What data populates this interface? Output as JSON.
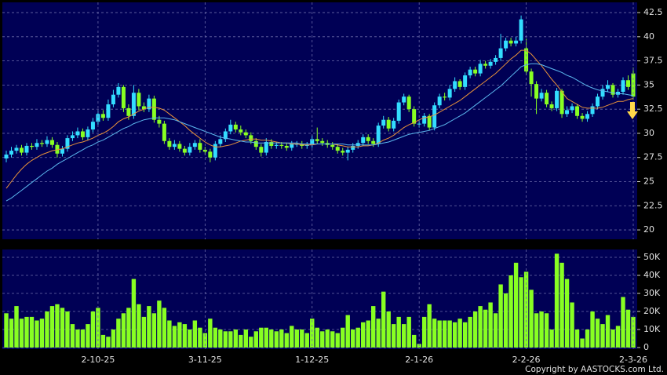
{
  "chart_data": [
    {
      "type": "candlestick",
      "up_color": "#33ddff",
      "down_color": "#88ff22",
      "open": [
        27.4,
        27.8,
        28.2,
        28.5,
        28.0,
        28.7,
        28.6,
        29.0,
        28.9,
        29.3,
        28.8,
        27.9,
        28.4,
        29.5,
        29.8,
        30.2,
        29.6,
        30.4,
        31.2,
        32.0,
        31.6,
        33.0,
        34.0,
        34.8,
        32.6,
        31.8,
        34.2,
        32.8,
        32.5,
        33.6,
        31.4,
        31.0,
        29.2,
        28.6,
        28.9,
        28.4,
        28.0,
        28.6,
        29.0,
        28.3,
        28.1,
        27.5,
        28.9,
        29.4,
        30.2,
        30.9,
        30.4,
        30.1,
        29.8,
        29.2,
        28.6,
        28.0,
        29.1,
        28.7,
        28.8,
        28.7,
        28.5,
        28.9,
        28.9,
        28.7,
        28.8,
        29.4,
        29.2,
        29.0,
        28.8,
        28.6,
        28.2,
        28.0,
        28.3,
        28.7,
        29.0,
        29.6,
        29.2,
        28.9,
        30.8,
        31.4,
        30.5,
        31.3,
        33.2,
        33.8,
        32.5,
        31.0,
        31.0,
        31.8,
        30.6,
        32.9,
        33.8,
        33.7,
        34.6,
        35.4,
        34.8,
        36.0,
        36.6,
        36.2,
        37.2,
        37.0,
        37.4,
        37.8,
        38.8,
        39.6,
        39.3,
        39.6,
        38.8,
        36.4,
        35.1,
        33.6,
        34.2,
        33.0,
        32.6,
        34.4,
        32.0,
        32.4,
        32.8,
        31.8,
        31.5,
        32.0,
        32.8,
        33.8,
        34.6,
        35.0,
        34.0,
        34.3,
        35.5,
        36.2
      ],
      "high": [
        28.2,
        28.6,
        28.8,
        28.8,
        29.0,
        29.0,
        29.4,
        29.3,
        29.7,
        29.6,
        29.1,
        28.7,
        29.8,
        30.2,
        30.6,
        30.5,
        30.7,
        31.6,
        32.4,
        32.4,
        33.5,
        34.5,
        35.2,
        35.0,
        33.0,
        35.0,
        34.6,
        33.2,
        34.0,
        33.9,
        31.8,
        31.3,
        29.5,
        29.3,
        29.2,
        28.7,
        29.0,
        29.3,
        29.4,
        28.6,
        28.4,
        29.2,
        29.8,
        30.5,
        31.4,
        31.2,
        30.8,
        30.4,
        30.1,
        29.5,
        28.9,
        29.5,
        29.4,
        29.1,
        29.1,
        29.0,
        29.2,
        29.2,
        29.2,
        29.1,
        29.8,
        30.6,
        29.5,
        29.3,
        29.1,
        28.9,
        28.5,
        28.6,
        29.0,
        29.3,
        29.9,
        29.9,
        29.5,
        31.1,
        31.8,
        31.7,
        31.6,
        33.5,
        34.1,
        34.0,
        32.8,
        31.4,
        32.1,
        32.0,
        33.2,
        34.1,
        34.2,
        35.0,
        35.8,
        35.6,
        36.3,
        36.9,
        36.9,
        37.6,
        37.5,
        37.7,
        38.1,
        40.3,
        39.9,
        39.9,
        40.0,
        42.2,
        39.8,
        36.7,
        35.4,
        34.6,
        34.5,
        33.3,
        34.7,
        34.6,
        32.8,
        33.1,
        33.0,
        32.1,
        32.3,
        33.1,
        34.1,
        35.0,
        35.5,
        35.2,
        34.6,
        35.8,
        36.0,
        36.8
      ],
      "low": [
        27.0,
        27.5,
        27.9,
        27.7,
        27.7,
        28.3,
        28.3,
        28.6,
        28.6,
        28.5,
        27.5,
        27.6,
        28.1,
        29.2,
        29.5,
        29.3,
        29.3,
        30.1,
        30.9,
        31.3,
        31.3,
        32.7,
        33.7,
        32.2,
        31.4,
        31.5,
        32.4,
        32.2,
        32.2,
        31.1,
        30.6,
        28.9,
        28.3,
        28.3,
        28.1,
        27.7,
        27.7,
        28.3,
        28.0,
        27.8,
        27.0,
        27.2,
        28.6,
        29.1,
        29.9,
        30.1,
        29.8,
        29.5,
        28.9,
        28.3,
        27.6,
        27.7,
        28.4,
        28.4,
        28.4,
        28.2,
        28.2,
        28.6,
        28.4,
        28.4,
        28.5,
        28.9,
        28.7,
        28.5,
        28.3,
        27.9,
        27.7,
        27.2,
        28.0,
        28.4,
        28.7,
        28.9,
        28.6,
        28.6,
        30.5,
        30.2,
        30.2,
        31.0,
        32.9,
        32.2,
        30.7,
        30.6,
        30.7,
        30.3,
        30.3,
        32.6,
        33.4,
        33.4,
        34.3,
        34.5,
        34.5,
        35.7,
        35.9,
        35.9,
        36.7,
        36.7,
        37.1,
        37.5,
        38.5,
        39.0,
        39.0,
        39.3,
        36.0,
        33.8,
        32.0,
        33.3,
        32.7,
        32.3,
        32.3,
        31.6,
        31.7,
        32.1,
        31.5,
        31.2,
        31.2,
        31.7,
        32.5,
        33.5,
        34.3,
        33.7,
        33.7,
        34.0,
        34.5,
        33.5
      ],
      "close": [
        27.8,
        28.2,
        28.5,
        28.0,
        28.7,
        28.6,
        29.0,
        28.9,
        29.3,
        28.8,
        27.9,
        28.4,
        29.5,
        29.8,
        30.2,
        29.6,
        30.4,
        31.2,
        32.0,
        31.6,
        33.0,
        34.0,
        34.8,
        32.6,
        31.8,
        34.2,
        32.8,
        32.5,
        33.6,
        31.4,
        31.0,
        29.2,
        28.6,
        28.9,
        28.4,
        28.0,
        28.6,
        29.0,
        28.3,
        28.1,
        27.5,
        28.9,
        29.4,
        30.2,
        30.9,
        30.4,
        30.1,
        29.8,
        29.2,
        28.6,
        28.0,
        29.1,
        28.7,
        28.8,
        28.7,
        28.5,
        28.9,
        28.9,
        28.7,
        28.8,
        29.4,
        29.2,
        29.0,
        28.8,
        28.6,
        28.2,
        28.0,
        28.3,
        28.7,
        29.0,
        29.6,
        29.2,
        28.9,
        30.8,
        31.4,
        30.5,
        31.3,
        33.2,
        33.8,
        32.5,
        31.0,
        31.0,
        31.8,
        30.6,
        32.9,
        33.8,
        33.7,
        34.6,
        35.4,
        34.8,
        36.0,
        36.6,
        36.2,
        37.2,
        37.0,
        37.4,
        37.8,
        38.8,
        39.6,
        39.3,
        39.6,
        41.8,
        36.4,
        35.1,
        33.6,
        34.2,
        33.0,
        32.6,
        34.4,
        32.0,
        32.4,
        32.8,
        31.8,
        31.5,
        32.0,
        32.8,
        33.8,
        34.6,
        35.0,
        34.0,
        34.3,
        35.5,
        34.8,
        33.8
      ],
      "ma_lines": [
        {
          "color": "#e8923a",
          "values": [
            24.3,
            25.0,
            25.7,
            26.3,
            26.8,
            27.2,
            27.5,
            27.8,
            28.0,
            28.2,
            28.3,
            28.4,
            28.6,
            28.8,
            29.0,
            29.1,
            29.3,
            29.5,
            29.8,
            30.0,
            30.3,
            30.7,
            31.2,
            31.5,
            31.7,
            32.0,
            32.3,
            32.5,
            32.7,
            32.7,
            32.6,
            32.4,
            32.0,
            31.6,
            31.2,
            30.8,
            30.3,
            29.9,
            29.5,
            29.1,
            28.8,
            28.6,
            28.6,
            28.7,
            28.8,
            29.0,
            29.2,
            29.3,
            29.4,
            29.4,
            29.3,
            29.3,
            29.2,
            29.1,
            29.0,
            29.0,
            28.9,
            28.9,
            28.8,
            28.8,
            28.8,
            28.9,
            28.9,
            28.9,
            28.9,
            28.8,
            28.7,
            28.6,
            28.6,
            28.6,
            28.7,
            28.7,
            28.8,
            29.0,
            29.3,
            29.5,
            29.8,
            30.2,
            30.6,
            30.9,
            31.1,
            31.4,
            31.6,
            31.7,
            31.9,
            32.2,
            32.5,
            32.8,
            33.1,
            33.4,
            33.8,
            34.2,
            34.6,
            35.0,
            35.4,
            35.8,
            36.2,
            36.7,
            37.2,
            37.7,
            38.1,
            38.6,
            38.6,
            38.2,
            37.6,
            37.0,
            36.3,
            35.6,
            35.0,
            34.3,
            33.6,
            33.3,
            33.0,
            32.7,
            32.6,
            32.6,
            32.6,
            32.7,
            32.9,
            33.1,
            33.3,
            33.3,
            33.5,
            33.6
          ]
        },
        {
          "color": "#5cb8ee",
          "values": [
            23.0,
            23.3,
            23.7,
            24.1,
            24.5,
            24.9,
            25.3,
            25.7,
            26.1,
            26.4,
            26.8,
            27.1,
            27.4,
            27.7,
            28.0,
            28.3,
            28.6,
            28.8,
            29.1,
            29.3,
            29.6,
            29.9,
            30.2,
            30.5,
            30.7,
            31.0,
            31.2,
            31.4,
            31.5,
            31.6,
            31.6,
            31.6,
            31.5,
            31.4,
            31.2,
            31.0,
            30.8,
            30.6,
            30.4,
            30.2,
            30.0,
            29.8,
            29.6,
            29.5,
            29.4,
            29.3,
            29.2,
            29.1,
            29.1,
            29.0,
            29.0,
            29.0,
            29.0,
            29.0,
            29.0,
            29.0,
            29.0,
            29.0,
            28.9,
            28.9,
            28.9,
            28.9,
            28.9,
            28.9,
            28.9,
            28.9,
            28.9,
            28.8,
            28.8,
            28.8,
            28.8,
            28.8,
            28.8,
            28.9,
            29.0,
            29.1,
            29.3,
            29.5,
            29.7,
            29.9,
            30.0,
            30.1,
            30.2,
            30.3,
            30.5,
            30.7,
            30.9,
            31.2,
            31.5,
            31.8,
            32.1,
            32.5,
            32.9,
            33.3,
            33.7,
            34.1,
            34.5,
            34.9,
            35.4,
            35.9,
            36.4,
            36.9,
            37.1,
            37.2,
            37.2,
            37.1,
            36.9,
            36.7,
            36.5,
            36.3,
            36.0,
            35.8,
            35.5,
            35.2,
            34.9,
            34.7,
            34.5,
            34.4,
            34.3,
            34.2,
            34.1,
            34.1,
            34.0,
            33.9
          ]
        }
      ],
      "ylim": [
        19.03,
        43.56
      ],
      "yticks": [
        20,
        22.5,
        25,
        27.5,
        30,
        32.5,
        35,
        37.5,
        40,
        42.5
      ],
      "grid": true
    },
    {
      "type": "bar",
      "color": "#88ff22",
      "categories": [
        null,
        null,
        null,
        null,
        null,
        null,
        null,
        null,
        null,
        null,
        null,
        null,
        null,
        null,
        null,
        null,
        null,
        null,
        "2-10-25",
        null,
        null,
        null,
        null,
        null,
        null,
        null,
        null,
        null,
        null,
        null,
        null,
        null,
        null,
        null,
        null,
        null,
        null,
        null,
        null,
        "3-11-25",
        null,
        null,
        null,
        null,
        null,
        null,
        null,
        null,
        null,
        null,
        null,
        null,
        null,
        null,
        null,
        null,
        null,
        null,
        null,
        null,
        "1-12-25",
        null,
        null,
        null,
        null,
        null,
        null,
        null,
        null,
        null,
        null,
        null,
        null,
        null,
        null,
        null,
        null,
        null,
        null,
        null,
        null,
        "2-1-26",
        null,
        null,
        null,
        null,
        null,
        null,
        null,
        null,
        null,
        null,
        null,
        null,
        null,
        null,
        null,
        null,
        null,
        null,
        null,
        null,
        "2-2-26",
        null,
        null,
        null,
        null,
        null,
        null,
        null,
        null,
        null,
        null,
        null,
        null,
        null,
        null,
        null,
        null,
        null,
        null,
        null,
        null,
        "2-3-26"
      ],
      "values": [
        19000,
        16000,
        23000,
        16000,
        17000,
        17000,
        15000,
        16000,
        20000,
        23000,
        24000,
        22000,
        20000,
        13000,
        10000,
        10000,
        13000,
        20000,
        22000,
        7000,
        6000,
        10000,
        16000,
        19000,
        22000,
        38000,
        24000,
        17000,
        23000,
        19000,
        26000,
        22000,
        15000,
        12000,
        14000,
        13000,
        10000,
        15000,
        11000,
        8000,
        16000,
        11000,
        10000,
        9000,
        9000,
        10000,
        7000,
        10000,
        6000,
        9000,
        11000,
        11000,
        10000,
        9000,
        10000,
        8000,
        12000,
        10000,
        10000,
        8000,
        16000,
        11000,
        9000,
        10000,
        9000,
        8000,
        11000,
        18000,
        10000,
        11000,
        14000,
        15000,
        23000,
        16000,
        31000,
        20000,
        13000,
        17000,
        13000,
        17000,
        7000,
        2000,
        17000,
        24000,
        16000,
        15000,
        15000,
        15000,
        14000,
        16000,
        14000,
        17000,
        20000,
        23000,
        21000,
        25000,
        19000,
        35000,
        30000,
        40000,
        47000,
        39000,
        42000,
        32000,
        19000,
        20000,
        19000,
        10000,
        52000,
        47000,
        38000,
        25000,
        10000,
        5000,
        10000,
        20000,
        16000,
        13000,
        18000,
        10000,
        12000,
        28000,
        21000,
        17000
      ],
      "ylim": [
        -870,
        54347
      ],
      "yticks": [
        0,
        {
          "value": 10000,
          "label": "10K"
        },
        {
          "value": 20000,
          "label": "20K"
        },
        {
          "value": 30000,
          "label": "30K"
        },
        {
          "value": 40000,
          "label": "40K"
        },
        {
          "value": 50000,
          "label": "50K"
        }
      ],
      "grid": true,
      "annotation": "Copyright by AASTOCKS.com Ltd."
    }
  ]
}
